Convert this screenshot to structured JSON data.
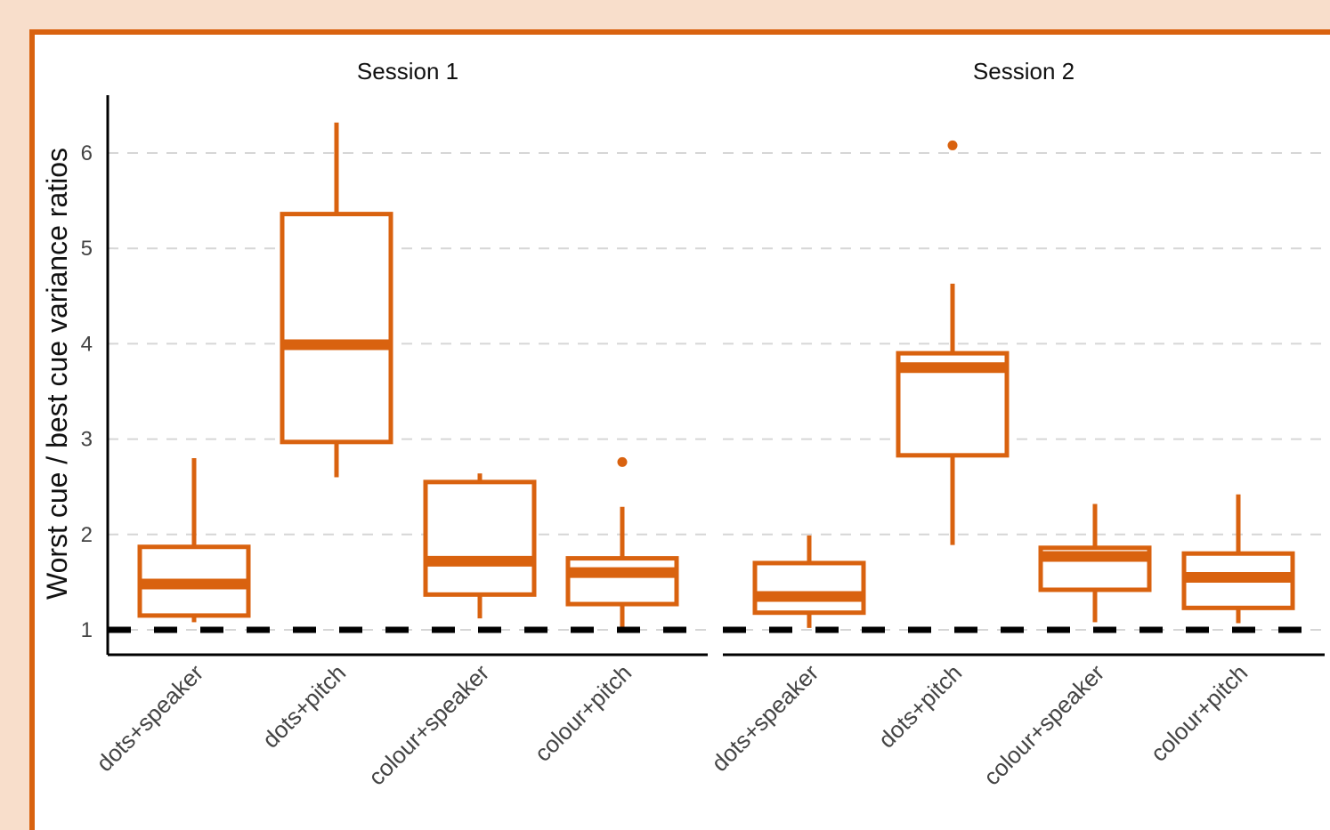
{
  "colors": {
    "accent": "#d9620f",
    "background": "#f8decb",
    "panel": "#ffffff"
  },
  "chart_data": {
    "type": "boxplot",
    "ylabel": "Worst cue / best cue variance ratios",
    "xlabel": "",
    "ylim": [
      0.75,
      6.6
    ],
    "yticks": [
      "1",
      "2",
      "3",
      "4",
      "5",
      "6"
    ],
    "reference_line": 1,
    "grid": "horizontal dashed",
    "panels": [
      {
        "title": "Session 1",
        "categories": [
          "dots+speaker",
          "dots+pitch",
          "colour+speaker",
          "colour+pitch"
        ],
        "boxes": [
          {
            "min": 1.08,
            "q1": 1.15,
            "median": 1.48,
            "q3": 1.87,
            "max": 2.8,
            "outliers": []
          },
          {
            "min": 2.6,
            "q1": 2.97,
            "median": 3.99,
            "q3": 5.36,
            "max": 6.32,
            "outliers": []
          },
          {
            "min": 1.12,
            "q1": 1.37,
            "median": 1.72,
            "q3": 2.55,
            "max": 2.64,
            "outliers": []
          },
          {
            "min": 1.0,
            "q1": 1.27,
            "median": 1.6,
            "q3": 1.75,
            "max": 2.29,
            "outliers": [
              2.76
            ]
          }
        ]
      },
      {
        "title": "Session 2",
        "categories": [
          "dots+speaker",
          "dots+pitch",
          "colour+speaker",
          "colour+pitch"
        ],
        "boxes": [
          {
            "min": 1.02,
            "q1": 1.18,
            "median": 1.35,
            "q3": 1.7,
            "max": 1.99,
            "outliers": []
          },
          {
            "min": 1.89,
            "q1": 2.83,
            "median": 3.75,
            "q3": 3.9,
            "max": 4.63,
            "outliers": [
              6.08
            ]
          },
          {
            "min": 1.08,
            "q1": 1.42,
            "median": 1.77,
            "q3": 1.86,
            "max": 2.32,
            "outliers": []
          },
          {
            "min": 1.07,
            "q1": 1.23,
            "median": 1.55,
            "q3": 1.8,
            "max": 2.42,
            "outliers": []
          }
        ]
      }
    ]
  }
}
